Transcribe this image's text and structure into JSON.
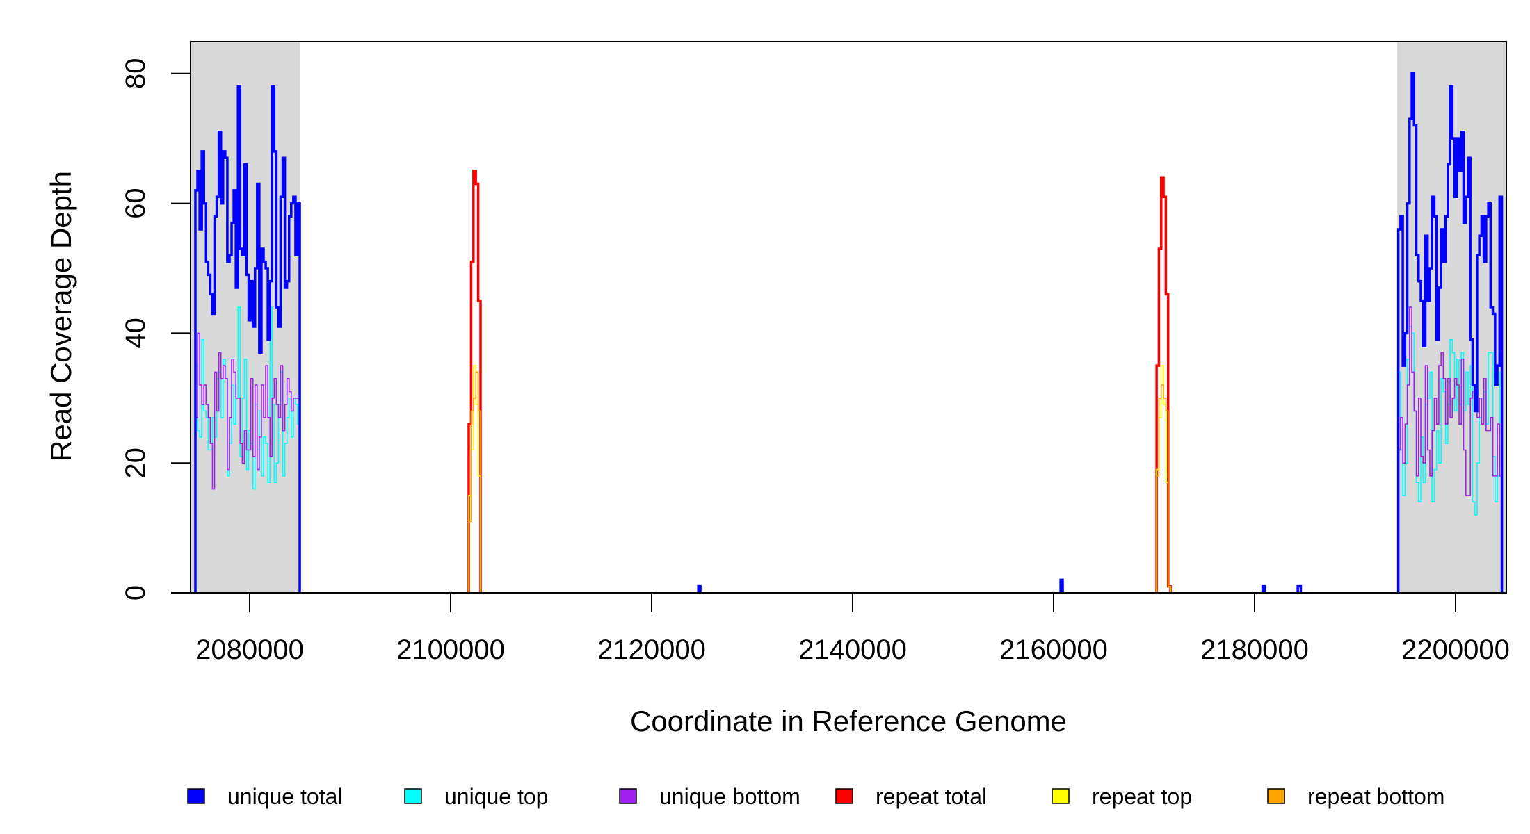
{
  "chart_data": {
    "type": "line",
    "title": "",
    "xlabel": "Coordinate in Reference Genome",
    "ylabel": "Read Coverage Depth",
    "xlim": [
      2074118,
      2205052
    ],
    "ylim": [
      0,
      84.9
    ],
    "x_ticks": [
      2080000,
      2100000,
      2120000,
      2140000,
      2160000,
      2180000,
      2200000
    ],
    "x_tick_labels": [
      "2080000",
      "2100000",
      "2120000",
      "2140000",
      "2160000",
      "2180000",
      "2200000"
    ],
    "y_ticks": [
      0,
      20,
      40,
      60,
      80
    ],
    "y_tick_labels": [
      "0",
      "20",
      "40",
      "60",
      "80"
    ],
    "data_range": [
      2074600,
      2204600
    ],
    "shaded_regions": [
      [
        2074118,
        2085000
      ],
      [
        2194200,
        2205052
      ]
    ],
    "shade_color": "#d9d9d9",
    "legend_position": "bottom",
    "series": [
      {
        "name": "unique total",
        "color": "#0000ff",
        "width": 3.5,
        "segments": [
          {
            "start": 2074600,
            "bin": 212,
            "values": [
              62,
              65,
              56,
              68,
              60,
              51,
              49,
              46,
              43,
              58,
              61,
              71,
              60,
              68,
              67,
              51,
              52,
              57,
              62,
              47,
              78,
              53,
              52,
              66,
              49,
              42,
              48,
              41,
              50,
              63,
              37,
              53,
              51,
              50,
              39,
              48,
              78,
              68,
              44,
              41,
              61,
              67,
              47,
              48,
              58,
              60,
              61,
              52,
              60
            ]
          },
          {
            "start": 2124650,
            "bin": 200,
            "values": [
              1
            ]
          },
          {
            "start": 2160700,
            "bin": 200,
            "values": [
              2
            ]
          },
          {
            "start": 2180800,
            "bin": 200,
            "values": [
              1
            ]
          },
          {
            "start": 2184300,
            "bin": 300,
            "values": [
              1
            ]
          },
          {
            "start": 2194300,
            "bin": 224,
            "values": [
              56,
              58,
              35,
              40,
              60,
              73,
              80,
              72,
              52,
              48,
              45,
              38,
              55,
              45,
              50,
              61,
              58,
              39,
              47,
              56,
              51,
              58,
              66,
              78,
              70,
              61,
              70,
              65,
              71,
              57,
              61,
              67,
              39,
              32,
              28,
              52,
              55,
              58,
              51,
              58,
              60,
              44,
              43,
              32,
              35,
              61
            ]
          }
        ]
      },
      {
        "name": "unique top",
        "color": "#00ffff",
        "width": 1.6,
        "segments": [
          {
            "start": 2074600,
            "bin": 212,
            "values": [
              35,
              25,
              24,
              39,
              28,
              27,
              22,
              22,
              27,
              24,
              33,
              34,
              27,
              36,
              33,
              18,
              23,
              32,
              26,
              30,
              44,
              21,
              30,
              36,
              19,
              25,
              23,
              16,
              29,
              22,
              28,
              18,
              24,
              23,
              17,
              44,
              29,
              17,
              20,
              29,
              34,
              18,
              23,
              27,
              30,
              24,
              30,
              29,
              26
            ]
          },
          {
            "start": 2124650,
            "bin": 200,
            "values": [
              1
            ]
          },
          {
            "start": 2194300,
            "bin": 224,
            "values": [
              34,
              22,
              15,
              20,
              36,
              41,
              40,
              28,
              17,
              14,
              24,
              17,
              29,
              30,
              34,
              14,
              19,
              25,
              20,
              33,
              31,
              23,
              29,
              39,
              37,
              28,
              36,
              29,
              37,
              28,
              34,
              29,
              35,
              14,
              12,
              20,
              27,
              30,
              31,
              26,
              37,
              37,
              21,
              14,
              18,
              34
            ]
          }
        ]
      },
      {
        "name": "unique bottom",
        "color": "#a020f0",
        "width": 1.6,
        "segments": [
          {
            "start": 2074600,
            "bin": 212,
            "values": [
              27,
              40,
              32,
              29,
              32,
              29,
              27,
              23,
              16,
              34,
              28,
              37,
              33,
              35,
              33,
              19,
              27,
              36,
              34,
              30,
              30,
              23,
              20,
              25,
              22,
              22,
              33,
              21,
              32,
              19,
              24,
              32,
              27,
              35,
              27,
              21,
              30,
              33,
              29,
              27,
              35,
              25,
              29,
              33,
              31,
              28,
              30,
              30,
              30
            ]
          },
          {
            "start": 2194300,
            "bin": 224,
            "values": [
              22,
              27,
              20,
              26,
              32,
              44,
              34,
              28,
              18,
              30,
              21,
              20,
              35,
              22,
              18,
              25,
              30,
              26,
              35,
              37,
              33,
              26,
              33,
              27,
              30,
              33,
              32,
              26,
              36,
              22,
              15,
              15,
              30,
              31,
              31,
              27,
              30,
              26,
              33,
              25,
              25,
              27,
              18,
              18,
              26,
              18
            ]
          }
        ]
      },
      {
        "name": "repeat total",
        "color": "#ff0000",
        "width": 3.5,
        "segments": [
          {
            "start": 2101800,
            "bin": 235,
            "values": [
              26,
              51,
              65,
              63,
              45
            ]
          },
          {
            "start": 2170250,
            "bin": 230,
            "values": [
              35,
              53,
              64,
              61,
              46,
              1
            ]
          }
        ]
      },
      {
        "name": "repeat top",
        "color": "#ffff00",
        "width": 1.6,
        "segments": [
          {
            "start": 2101800,
            "bin": 235,
            "values": [
              15,
              22,
              35,
              29,
              18
            ]
          },
          {
            "start": 2170250,
            "bin": 230,
            "values": [
              19,
              27,
              35,
              29,
              17,
              1
            ]
          }
        ]
      },
      {
        "name": "repeat bottom",
        "color": "#ffa500",
        "width": 1.6,
        "segments": [
          {
            "start": 2101800,
            "bin": 235,
            "values": [
              11,
              28,
              30,
              34,
              28
            ]
          },
          {
            "start": 2170250,
            "bin": 230,
            "values": [
              18,
              30,
              32,
              30,
              28,
              1
            ]
          }
        ]
      }
    ]
  }
}
